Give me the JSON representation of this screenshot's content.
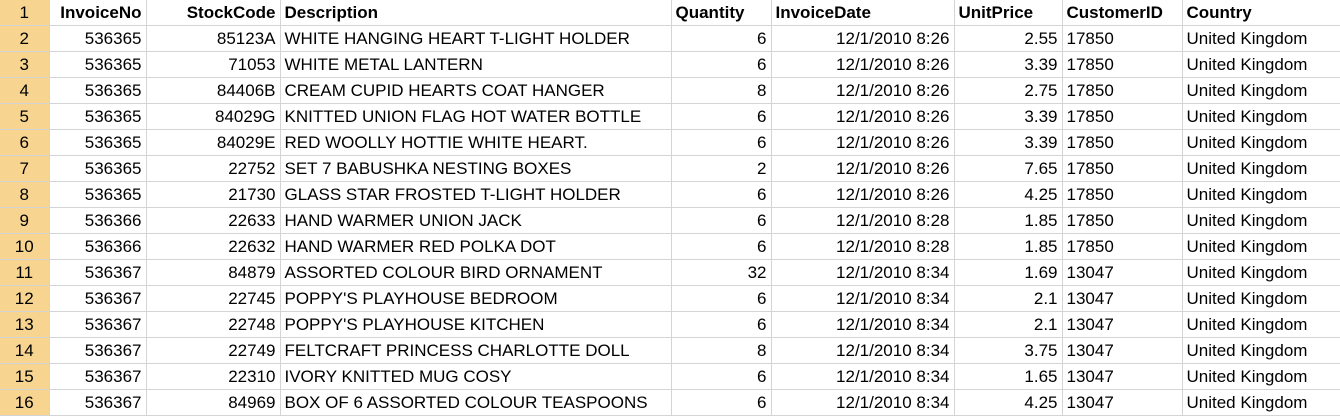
{
  "columns": [
    {
      "key": "invoice",
      "label": "InvoiceNo"
    },
    {
      "key": "stock",
      "label": "StockCode"
    },
    {
      "key": "desc",
      "label": "Description"
    },
    {
      "key": "qty",
      "label": "Quantity"
    },
    {
      "key": "date",
      "label": "InvoiceDate"
    },
    {
      "key": "price",
      "label": "UnitPrice"
    },
    {
      "key": "cust",
      "label": "CustomerID"
    },
    {
      "key": "country",
      "label": "Country"
    }
  ],
  "header_row_number": "1",
  "rows": [
    {
      "n": "2",
      "invoice": "536365",
      "stock": "85123A",
      "desc": "WHITE HANGING HEART T-LIGHT HOLDER",
      "qty": "6",
      "date": "12/1/2010 8:26",
      "price": "2.55",
      "cust": "17850",
      "country": "United Kingdom"
    },
    {
      "n": "3",
      "invoice": "536365",
      "stock": "71053",
      "desc": "WHITE METAL LANTERN",
      "qty": "6",
      "date": "12/1/2010 8:26",
      "price": "3.39",
      "cust": "17850",
      "country": "United Kingdom"
    },
    {
      "n": "4",
      "invoice": "536365",
      "stock": "84406B",
      "desc": "CREAM CUPID HEARTS COAT HANGER",
      "qty": "8",
      "date": "12/1/2010 8:26",
      "price": "2.75",
      "cust": "17850",
      "country": "United Kingdom"
    },
    {
      "n": "5",
      "invoice": "536365",
      "stock": "84029G",
      "desc": "KNITTED UNION FLAG HOT WATER BOTTLE",
      "qty": "6",
      "date": "12/1/2010 8:26",
      "price": "3.39",
      "cust": "17850",
      "country": "United Kingdom"
    },
    {
      "n": "6",
      "invoice": "536365",
      "stock": "84029E",
      "desc": "RED WOOLLY HOTTIE WHITE HEART.",
      "qty": "6",
      "date": "12/1/2010 8:26",
      "price": "3.39",
      "cust": "17850",
      "country": "United Kingdom"
    },
    {
      "n": "7",
      "invoice": "536365",
      "stock": "22752",
      "desc": "SET 7 BABUSHKA NESTING BOXES",
      "qty": "2",
      "date": "12/1/2010 8:26",
      "price": "7.65",
      "cust": "17850",
      "country": "United Kingdom"
    },
    {
      "n": "8",
      "invoice": "536365",
      "stock": "21730",
      "desc": "GLASS STAR FROSTED T-LIGHT HOLDER",
      "qty": "6",
      "date": "12/1/2010 8:26",
      "price": "4.25",
      "cust": "17850",
      "country": "United Kingdom"
    },
    {
      "n": "9",
      "invoice": "536366",
      "stock": "22633",
      "desc": "HAND WARMER UNION JACK",
      "qty": "6",
      "date": "12/1/2010 8:28",
      "price": "1.85",
      "cust": "17850",
      "country": "United Kingdom"
    },
    {
      "n": "10",
      "invoice": "536366",
      "stock": "22632",
      "desc": "HAND WARMER RED POLKA DOT",
      "qty": "6",
      "date": "12/1/2010 8:28",
      "price": "1.85",
      "cust": "17850",
      "country": "United Kingdom"
    },
    {
      "n": "11",
      "invoice": "536367",
      "stock": "84879",
      "desc": "ASSORTED COLOUR BIRD ORNAMENT",
      "qty": "32",
      "date": "12/1/2010 8:34",
      "price": "1.69",
      "cust": "13047",
      "country": "United Kingdom"
    },
    {
      "n": "12",
      "invoice": "536367",
      "stock": "22745",
      "desc": "POPPY'S PLAYHOUSE BEDROOM",
      "qty": "6",
      "date": "12/1/2010 8:34",
      "price": "2.1",
      "cust": "13047",
      "country": "United Kingdom"
    },
    {
      "n": "13",
      "invoice": "536367",
      "stock": "22748",
      "desc": "POPPY'S PLAYHOUSE KITCHEN",
      "qty": "6",
      "date": "12/1/2010 8:34",
      "price": "2.1",
      "cust": "13047",
      "country": "United Kingdom"
    },
    {
      "n": "14",
      "invoice": "536367",
      "stock": "22749",
      "desc": "FELTCRAFT PRINCESS CHARLOTTE DOLL",
      "qty": "8",
      "date": "12/1/2010 8:34",
      "price": "3.75",
      "cust": "13047",
      "country": "United Kingdom"
    },
    {
      "n": "15",
      "invoice": "536367",
      "stock": "22310",
      "desc": "IVORY KNITTED MUG COSY",
      "qty": "6",
      "date": "12/1/2010 8:34",
      "price": "1.65",
      "cust": "13047",
      "country": "United Kingdom"
    },
    {
      "n": "16",
      "invoice": "536367",
      "stock": "84969",
      "desc": "BOX OF 6 ASSORTED COLOUR TEASPOONS",
      "qty": "6",
      "date": "12/1/2010 8:34",
      "price": "4.25",
      "cust": "13047",
      "country": "United Kingdom"
    }
  ]
}
